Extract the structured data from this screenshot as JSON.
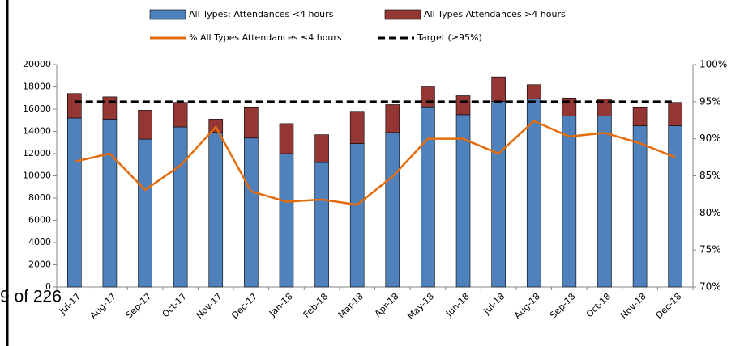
{
  "page_footer": "9 of 226",
  "chart_data": {
    "type": "bar",
    "stacked": true,
    "categories": [
      "Jul-17",
      "Aug-17",
      "Sep-17",
      "Oct-17",
      "Nov-17",
      "Dec-17",
      "Jan-18",
      "Feb-18",
      "Mar-18",
      "Apr-18",
      "May-18",
      "Jun-18",
      "Jul-18",
      "Aug-18",
      "Sep-18",
      "Oct-18",
      "Nov-18",
      "Dec-18"
    ],
    "series": [
      {
        "name": "All Types: Attendances <4 hours",
        "type": "bar",
        "color": "#4f81bd",
        "values": [
          15200,
          15100,
          13300,
          14400,
          13900,
          13400,
          12000,
          11200,
          12900,
          13900,
          16200,
          15500,
          16700,
          16900,
          15400,
          15400,
          14500,
          14500
        ]
      },
      {
        "name": "All Types Attendances >4 hours",
        "type": "bar",
        "color": "#943634",
        "values": [
          2200,
          2000,
          2600,
          2200,
          1200,
          2800,
          2700,
          2500,
          2900,
          2500,
          1800,
          1700,
          2200,
          1300,
          1600,
          1500,
          1700,
          2100
        ]
      },
      {
        "name": "% All Types Attendances ≤4 hours",
        "type": "line",
        "axis": "y2",
        "color": "#e46c0a",
        "style": "solid",
        "values": [
          86.9,
          88,
          83.1,
          86.4,
          91.6,
          82.9,
          81.5,
          81.8,
          81.1,
          84.9,
          90,
          90,
          88,
          92.4,
          90.3,
          90.8,
          89.4,
          87.5
        ]
      },
      {
        "name": "Target (≥95%)",
        "type": "line",
        "axis": "y2",
        "color": "#000000",
        "style": "dashed",
        "values": [
          95,
          95,
          95,
          95,
          95,
          95,
          95,
          95,
          95,
          95,
          95,
          95,
          95,
          95,
          95,
          95,
          95,
          95
        ]
      }
    ],
    "ylim": [
      0,
      20000
    ],
    "yticks": [
      0,
      2000,
      4000,
      6000,
      8000,
      10000,
      12000,
      14000,
      16000,
      18000,
      20000
    ],
    "y2lim": [
      70,
      100
    ],
    "y2ticks": [
      {
        "value": 70,
        "label": "70%"
      },
      {
        "value": 75,
        "label": "75%"
      },
      {
        "value": 80,
        "label": "80%"
      },
      {
        "value": 85,
        "label": "85%"
      },
      {
        "value": 90,
        "label": "90%"
      },
      {
        "value": 95,
        "label": "95%"
      },
      {
        "value": 100,
        "label": "100%"
      }
    ],
    "grid": false,
    "legend": "top"
  }
}
